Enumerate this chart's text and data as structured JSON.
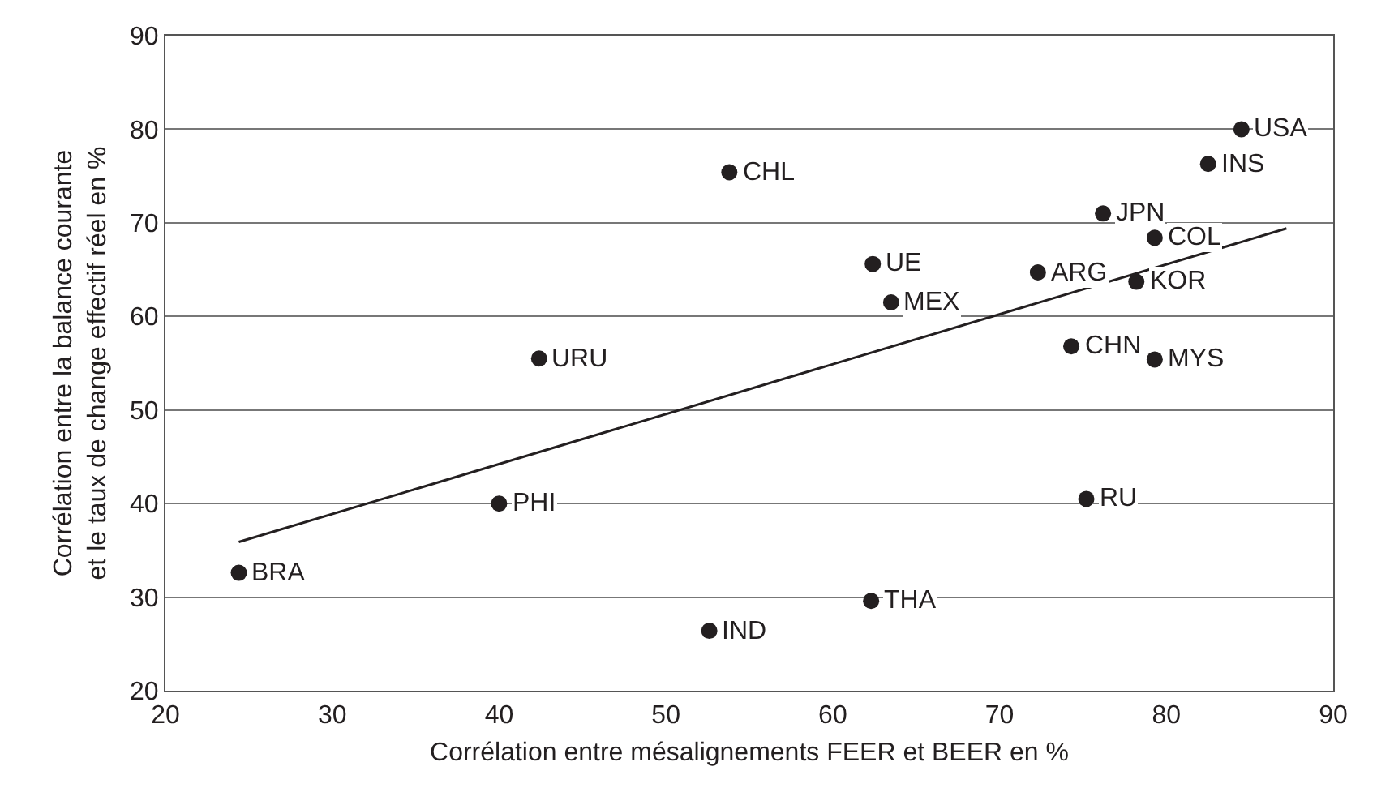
{
  "chart_data": {
    "type": "scatter",
    "xlabel": "Corrélation entre mésalignements FEER et BEER en %",
    "ylabel": "Corrélation entre la balance courante\net le taux de change effectif réel en %",
    "x": [
      84.5,
      82.5,
      53.8,
      76.2,
      79.3,
      62.4,
      72.3,
      63.5,
      78.2,
      42.4,
      74.3,
      79.3,
      75.2,
      40,
      24.4,
      62.3,
      52.6
    ],
    "series": [
      {
        "color": "#231f20",
        "marker": "circle",
        "values": [
          80,
          76.3,
          75.4,
          71,
          68.4,
          65.6,
          64.7,
          61.5,
          63.7,
          55.5,
          56.8,
          55.4,
          40.5,
          40,
          32.6,
          29.6,
          26.4
        ]
      },
      {
        "type": "line",
        "marker": "none",
        "color": "#231f20",
        "x": [
          24.4,
          87.2
        ],
        "values": [
          35.9,
          69.4
        ]
      }
    ],
    "annotations": [
      {
        "text": "USA",
        "x": 84.5,
        "y": 80
      },
      {
        "text": "INS",
        "x": 82.5,
        "y": 76.3
      },
      {
        "text": "CHL",
        "x": 53.8,
        "y": 75.4
      },
      {
        "text": "JPN",
        "x": 76.2,
        "y": 71
      },
      {
        "text": "COL",
        "x": 79.3,
        "y": 68.4
      },
      {
        "text": "UE",
        "x": 62.4,
        "y": 65.6
      },
      {
        "text": "ARG",
        "x": 72.3,
        "y": 64.7
      },
      {
        "text": "MEX",
        "x": 63.5,
        "y": 61.5
      },
      {
        "text": "KOR",
        "x": 78.2,
        "y": 63.7
      },
      {
        "text": "URU",
        "x": 42.4,
        "y": 55.5
      },
      {
        "text": "CHN",
        "x": 74.3,
        "y": 56.8
      },
      {
        "text": "MYS",
        "x": 79.3,
        "y": 55.4
      },
      {
        "text": "RU",
        "x": 75.2,
        "y": 40.5
      },
      {
        "text": "PHI",
        "x": 40,
        "y": 40
      },
      {
        "text": "BRA",
        "x": 24.4,
        "y": 32.6
      },
      {
        "text": "THA",
        "x": 62.3,
        "y": 29.6
      },
      {
        "text": "IND",
        "x": 52.6,
        "y": 26.4
      }
    ],
    "xlim": [
      20,
      90
    ],
    "xticks": [
      20,
      30,
      40,
      50,
      60,
      70,
      80,
      90
    ],
    "ylim": [
      20,
      90
    ],
    "yticks": [
      20,
      30,
      40,
      50,
      60,
      70,
      80,
      90
    ],
    "grid": "y",
    "line_style": "solid"
  }
}
